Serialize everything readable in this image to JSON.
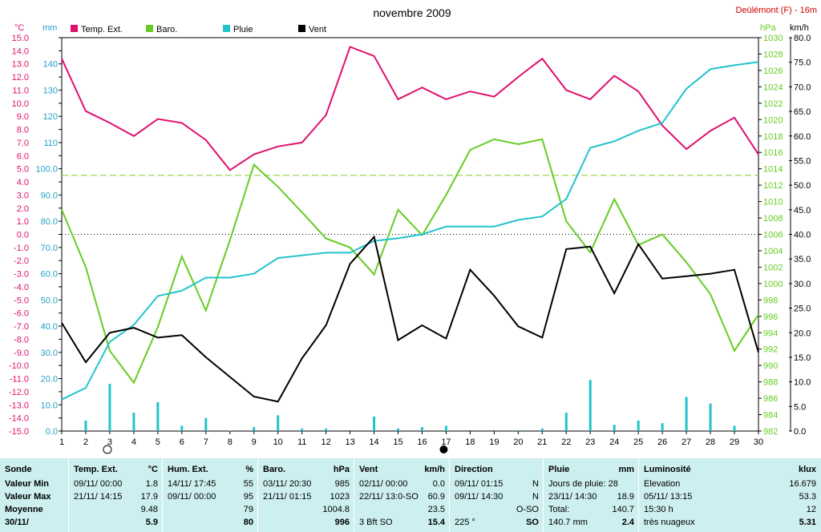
{
  "header": {
    "title": "novembre 2009",
    "station": "Deülémont (F) - 16m"
  },
  "units": {
    "temp": "°C",
    "rain": "mm",
    "baro": "hPa",
    "wind": "km/h"
  },
  "legend": [
    {
      "label": "Temp. Ext.",
      "color": "#e0106e"
    },
    {
      "label": "Baro.",
      "color": "#66cc22"
    },
    {
      "label": "Pluie",
      "color": "#22c4cc"
    },
    {
      "label": "Vent",
      "color": "#000000"
    }
  ],
  "chart_data": {
    "type": "line",
    "title": "novembre 2009",
    "x": [
      1,
      2,
      3,
      4,
      5,
      6,
      7,
      8,
      9,
      10,
      11,
      12,
      13,
      14,
      15,
      16,
      17,
      18,
      19,
      20,
      21,
      22,
      23,
      24,
      25,
      26,
      27,
      28,
      29,
      30
    ],
    "axes": {
      "temp": {
        "unit": "°C",
        "range": [
          -15,
          15
        ],
        "ticks": [
          "15.0",
          "14.0",
          "13.0",
          "12.0",
          "11.0",
          "10.0",
          "9.0",
          "8.0",
          "7.0",
          "6.0",
          "5.0",
          "4.0",
          "3.0",
          "2.0",
          "1.0",
          "0.0",
          "-1.0",
          "-2.0",
          "-3.0",
          "-4.0",
          "-5.0",
          "-6.0",
          "-7.0",
          "-8.0",
          "-9.0",
          "-10.0",
          "-11.0",
          "-12.0",
          "-13.0",
          "-14.0",
          "-15.0"
        ]
      },
      "rain": {
        "unit": "mm",
        "range": [
          0,
          150
        ],
        "ticks": [
          "140",
          "130",
          "120",
          "110",
          "100.0",
          "90.0",
          "80.0",
          "70.0",
          "60.0",
          "50.0",
          "40.0",
          "30.0",
          "20.0",
          "10.0",
          "0.0"
        ]
      },
      "baro": {
        "unit": "hPa",
        "range": [
          982,
          1030
        ],
        "ticks": [
          "1030",
          "1028",
          "1026",
          "1024",
          "1022",
          "1020",
          "1018",
          "1016",
          "1014",
          "1012",
          "1010",
          "1008",
          "1006",
          "1004",
          "1002",
          "1000",
          "998",
          "996",
          "994",
          "992",
          "990",
          "988",
          "986",
          "984",
          "982"
        ]
      },
      "wind": {
        "unit": "km/h",
        "range": [
          0,
          80
        ],
        "ticks": [
          "80.0",
          "75.0",
          "70.0",
          "65.0",
          "60.0",
          "55.0",
          "50.0",
          "45.0",
          "40.0",
          "35.0",
          "30.0",
          "25.0",
          "20.0",
          "15.0",
          "10.0",
          "5.0",
          "0.0"
        ]
      }
    },
    "series": [
      {
        "name": "Temp. Ext.",
        "axis": "temp",
        "color": "#e0106e",
        "values": [
          13.4,
          9.4,
          8.5,
          7.5,
          8.8,
          8.5,
          7.2,
          4.9,
          6.1,
          6.7,
          7.0,
          9.1,
          14.3,
          13.6,
          10.3,
          11.2,
          10.3,
          10.9,
          10.5,
          12.0,
          13.4,
          11.0,
          10.3,
          12.1,
          10.9,
          8.3,
          6.5,
          7.9,
          8.9,
          6.1
        ]
      },
      {
        "name": "Baro.",
        "axis": "baro",
        "color": "#66cc22",
        "values": [
          1009.0,
          1002.0,
          991.8,
          987.9,
          994.7,
          1003.3,
          996.7,
          1005.3,
          1014.5,
          1011.8,
          1008.7,
          1005.5,
          1004.4,
          1001.1,
          1009.0,
          1005.9,
          1010.8,
          1016.3,
          1017.6,
          1017.0,
          1017.6,
          1007.6,
          1003.8,
          1010.3,
          1004.7,
          1006.0,
          1002.6,
          998.7,
          991.8,
          996.2
        ]
      },
      {
        "name": "Pluie",
        "axis": "rain",
        "color": "#22c4cc",
        "values": [
          12.0,
          16.5,
          34.0,
          40.5,
          51.5,
          53.5,
          58.5,
          58.5,
          60.0,
          66.0,
          67.0,
          68.0,
          68.0,
          72.5,
          73.5,
          75.0,
          78.0,
          78.0,
          78.0,
          80.5,
          81.8,
          88.5,
          108.0,
          110.5,
          114.5,
          117.5,
          130.5,
          138.0,
          139.5,
          140.7
        ]
      },
      {
        "name": "Vent",
        "axis": "wind",
        "color": "#000000",
        "values": [
          22.0,
          14.0,
          20.0,
          21.0,
          19.0,
          19.5,
          15.0,
          11.0,
          7.0,
          6.0,
          14.8,
          21.5,
          34.0,
          39.5,
          18.5,
          21.5,
          18.8,
          32.8,
          27.5,
          21.3,
          19.0,
          37.0,
          37.5,
          28.0,
          38.0,
          31.0,
          31.5,
          32.0,
          32.8,
          16.0
        ]
      },
      {
        "name": "Pluie (jour)",
        "axis": "rain",
        "color": "#22c4cc",
        "type": "bar",
        "values": [
          0.0,
          4.0,
          18.0,
          7.0,
          11.0,
          2.0,
          5.0,
          0.2,
          1.5,
          6.0,
          1.0,
          1.0,
          0.0,
          5.5,
          1.0,
          1.5,
          2.0,
          0,
          0,
          0.3,
          1.0,
          7.0,
          19.5,
          2.4,
          4.0,
          3.0,
          13.0,
          10.5,
          2.0,
          0.0
        ]
      }
    ],
    "reference_line": {
      "axis": "temp",
      "value": 4.5,
      "color": "#88cc22",
      "style": "dashed"
    },
    "markers": [
      {
        "x": 2.9,
        "symbol": "full-moon"
      },
      {
        "x": 16.9,
        "symbol": "new-moon"
      }
    ]
  },
  "footer": {
    "columns": [
      {
        "head_left": "Sonde",
        "rows": [
          [
            "Valeur Min",
            ""
          ],
          [
            "Valeur Max",
            ""
          ],
          [
            "Moyenne",
            ""
          ],
          [
            "30/11/",
            ""
          ]
        ]
      },
      {
        "head_left": "Temp. Ext.",
        "head_right": "°C",
        "rows": [
          [
            "09/11/  00:00",
            "1.8"
          ],
          [
            "21/11/  14:15",
            "17.9"
          ],
          [
            "",
            "9.48"
          ],
          [
            "",
            "5.9"
          ]
        ]
      },
      {
        "head_left": "Hum. Ext.",
        "head_right": "%",
        "rows": [
          [
            "14/11/  17:45",
            "55"
          ],
          [
            "09/11/  00:00",
            "95"
          ],
          [
            "",
            "79"
          ],
          [
            "",
            "80"
          ]
        ]
      },
      {
        "head_left": "Baro.",
        "head_right": "hPa",
        "rows": [
          [
            "03/11/  20:30",
            "985"
          ],
          [
            "21/11/  01:15",
            "1023"
          ],
          [
            "",
            "1004.8"
          ],
          [
            "",
            "996"
          ]
        ]
      },
      {
        "head_left": "Vent",
        "head_right": "km/h",
        "rows": [
          [
            "02/11/  00:00",
            "0.0"
          ],
          [
            "22/11/  13:0-SO",
            "60.9"
          ],
          [
            "",
            "23.5"
          ],
          [
            "3 Bft SO",
            "15.4"
          ]
        ]
      },
      {
        "head_left": "Direction",
        "head_right": "",
        "rows": [
          [
            "09/11/  01:15",
            "N"
          ],
          [
            "09/11/  14:30",
            "N"
          ],
          [
            "",
            "O-SO"
          ],
          [
            "225 °",
            "SO"
          ]
        ]
      },
      {
        "head_left": "Pluie",
        "head_right": "mm",
        "rows": [
          [
            "Jours de pluie: 28",
            ""
          ],
          [
            "23/11/  14:30",
            "18.9"
          ],
          [
            "Total:",
            "140.7"
          ],
          [
            "140.7 mm",
            "2.4"
          ]
        ]
      },
      {
        "head_left": "Luminosité",
        "head_right": "klux",
        "rows": [
          [
            "Elevation",
            "16.679"
          ],
          [
            "05/11/  13:15",
            "53.3"
          ],
          [
            "15:30 h",
            "12"
          ],
          [
            "très nuageux",
            "5.31"
          ]
        ]
      }
    ]
  }
}
